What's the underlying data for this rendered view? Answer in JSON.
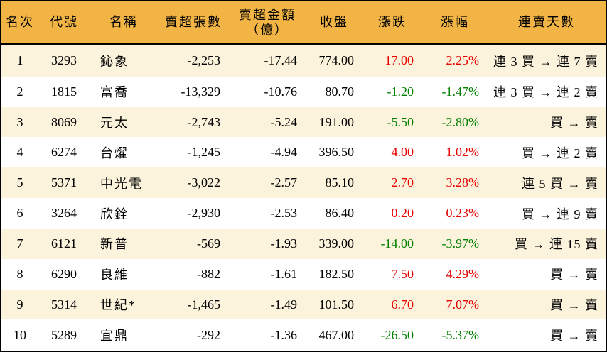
{
  "colors": {
    "header_bg": "#F2B545",
    "row_alt_bg": "#FCF3DC",
    "up_red": "#E60000",
    "down_green": "#008000",
    "border_black": "#000000"
  },
  "table": {
    "columns": [
      {
        "key": "rank",
        "label": "名次"
      },
      {
        "key": "code",
        "label": "代號"
      },
      {
        "key": "name",
        "label": "名稱"
      },
      {
        "key": "sell_volume",
        "label": "賣超張數"
      },
      {
        "key": "sell_amount",
        "label": "賣超金額",
        "label2": "（億）"
      },
      {
        "key": "close",
        "label": "收盤"
      },
      {
        "key": "change",
        "label": "漲跌"
      },
      {
        "key": "change_pct",
        "label": "漲幅"
      },
      {
        "key": "streak",
        "label": "連賣天數"
      }
    ],
    "rows": [
      {
        "rank": "1",
        "code": "3293",
        "name": "鈊象",
        "sell_volume": "-2,253",
        "sell_amount": "-17.44",
        "close": "774.00",
        "change": "17.00",
        "change_pct": "2.25%",
        "trend": "up",
        "streak": "連 3 買 → 連 7 賣"
      },
      {
        "rank": "2",
        "code": "1815",
        "name": "富喬",
        "sell_volume": "-13,329",
        "sell_amount": "-10.76",
        "close": "80.70",
        "change": "-1.20",
        "change_pct": "-1.47%",
        "trend": "down",
        "streak": "連 3 買 → 連 2 賣"
      },
      {
        "rank": "3",
        "code": "8069",
        "name": "元太",
        "sell_volume": "-2,743",
        "sell_amount": "-5.24",
        "close": "191.00",
        "change": "-5.50",
        "change_pct": "-2.80%",
        "trend": "down",
        "streak": "買 → 賣"
      },
      {
        "rank": "4",
        "code": "6274",
        "name": "台燿",
        "sell_volume": "-1,245",
        "sell_amount": "-4.94",
        "close": "396.50",
        "change": "4.00",
        "change_pct": "1.02%",
        "trend": "up",
        "streak": "買 → 連 2 賣"
      },
      {
        "rank": "5",
        "code": "5371",
        "name": "中光電",
        "sell_volume": "-3,022",
        "sell_amount": "-2.57",
        "close": "85.10",
        "change": "2.70",
        "change_pct": "3.28%",
        "trend": "up",
        "streak": "連 5 買 → 賣"
      },
      {
        "rank": "6",
        "code": "3264",
        "name": "欣銓",
        "sell_volume": "-2,930",
        "sell_amount": "-2.53",
        "close": "86.40",
        "change": "0.20",
        "change_pct": "0.23%",
        "trend": "up",
        "streak": "買 → 連 9 賣"
      },
      {
        "rank": "7",
        "code": "6121",
        "name": "新普",
        "sell_volume": "-569",
        "sell_amount": "-1.93",
        "close": "339.00",
        "change": "-14.00",
        "change_pct": "-3.97%",
        "trend": "down",
        "streak": "買 → 連 15 賣"
      },
      {
        "rank": "8",
        "code": "6290",
        "name": "良維",
        "sell_volume": "-882",
        "sell_amount": "-1.61",
        "close": "182.50",
        "change": "7.50",
        "change_pct": "4.29%",
        "trend": "up",
        "streak": "買 → 賣"
      },
      {
        "rank": "9",
        "code": "5314",
        "name": "世紀*",
        "sell_volume": "-1,465",
        "sell_amount": "-1.49",
        "close": "101.50",
        "change": "6.70",
        "change_pct": "7.07%",
        "trend": "up",
        "streak": "買 → 賣"
      },
      {
        "rank": "10",
        "code": "5289",
        "name": "宜鼎",
        "sell_volume": "-292",
        "sell_amount": "-1.36",
        "close": "467.00",
        "change": "-26.50",
        "change_pct": "-5.37%",
        "trend": "down",
        "streak": "買 → 賣"
      }
    ]
  },
  "chart_data": {
    "type": "table",
    "title": "",
    "columns": [
      "名次",
      "代號",
      "名稱",
      "賣超張數",
      "賣超金額（億）",
      "收盤",
      "漲跌",
      "漲幅",
      "連賣天數"
    ],
    "rows": [
      [
        "1",
        "3293",
        "鈊象",
        "-2,253",
        "-17.44",
        "774.00",
        "17.00",
        "2.25%",
        "連 3 買 → 連 7 賣"
      ],
      [
        "2",
        "1815",
        "富喬",
        "-13,329",
        "-10.76",
        "80.70",
        "-1.20",
        "-1.47%",
        "連 3 買 → 連 2 賣"
      ],
      [
        "3",
        "8069",
        "元太",
        "-2,743",
        "-5.24",
        "191.00",
        "-5.50",
        "-2.80%",
        "買 → 賣"
      ],
      [
        "4",
        "6274",
        "台燿",
        "-1,245",
        "-4.94",
        "396.50",
        "4.00",
        "1.02%",
        "買 → 連 2 賣"
      ],
      [
        "5",
        "5371",
        "中光電",
        "-3,022",
        "-2.57",
        "85.10",
        "2.70",
        "3.28%",
        "連 5 買 → 賣"
      ],
      [
        "6",
        "3264",
        "欣銓",
        "-2,930",
        "-2.53",
        "86.40",
        "0.20",
        "0.23%",
        "買 → 連 9 賣"
      ],
      [
        "7",
        "6121",
        "新普",
        "-569",
        "-1.93",
        "339.00",
        "-14.00",
        "-3.97%",
        "買 → 連 15 賣"
      ],
      [
        "8",
        "6290",
        "良維",
        "-882",
        "-1.61",
        "182.50",
        "7.50",
        "4.29%",
        "買 → 賣"
      ],
      [
        "9",
        "5314",
        "世紀*",
        "-1,465",
        "-1.49",
        "101.50",
        "6.70",
        "7.07%",
        "買 → 賣"
      ],
      [
        "10",
        "5289",
        "宜鼎",
        "-292",
        "-1.36",
        "467.00",
        "-26.50",
        "-5.37%",
        "買 → 賣"
      ]
    ],
    "value_color_rule": "change and change_pct: red #E60000 when positive (up), green #008000 when negative (down)",
    "row_striping": "odd rows cream #FCF3DC, even rows white"
  }
}
